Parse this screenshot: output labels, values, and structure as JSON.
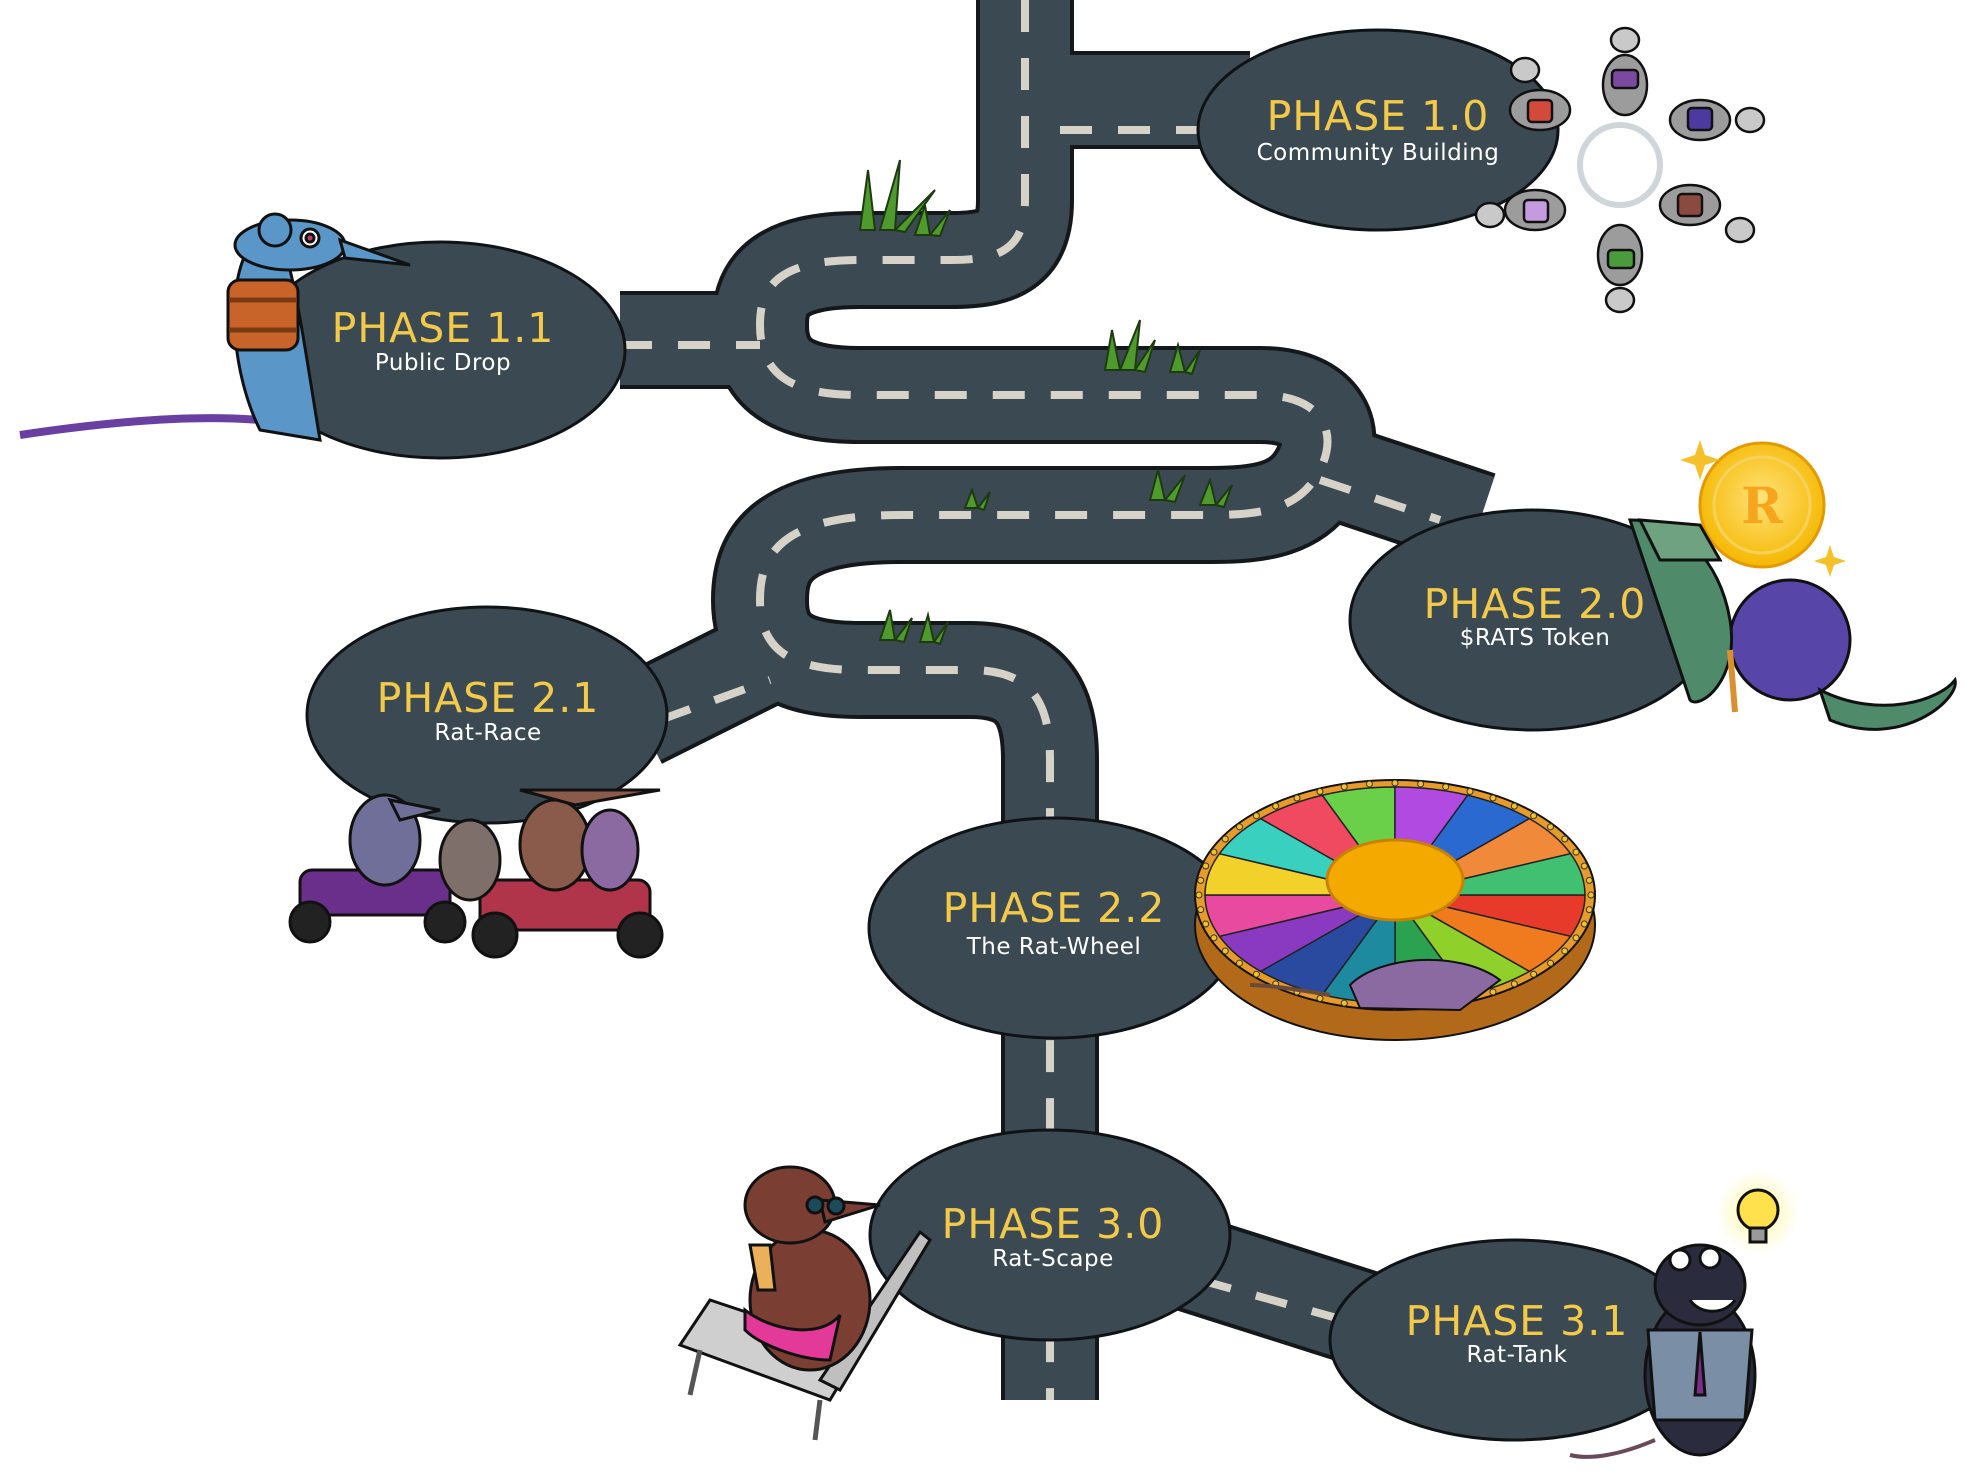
{
  "roadmap": {
    "phases": [
      {
        "id": "1.0",
        "title": "PHASE 1.0",
        "subtitle": "Community Building"
      },
      {
        "id": "1.1",
        "title": "PHASE 1.1",
        "subtitle": "Public Drop"
      },
      {
        "id": "2.0",
        "title": "PHASE 2.0",
        "subtitle": "$RATS Token"
      },
      {
        "id": "2.1",
        "title": "PHASE 2.1",
        "subtitle": "Rat-Race"
      },
      {
        "id": "2.2",
        "title": "PHASE 2.2",
        "subtitle": "The Rat-Wheel"
      },
      {
        "id": "3.0",
        "title": "PHASE 3.0",
        "subtitle": "Rat-Scape"
      },
      {
        "id": "3.1",
        "title": "PHASE 3.1",
        "subtitle": "Rat-Tank"
      }
    ]
  },
  "coin": {
    "letter": "R"
  },
  "colors": {
    "road": "#3b4a52",
    "road_edge": "#14181a",
    "bubble": "#3b4a52",
    "title": "#f3c94a",
    "subtitle": "#ffffff",
    "dash": "#d7d2c8",
    "grass": "#4f9a2c"
  },
  "icons": [
    "rat-circle-illustration",
    "rat-life-vest-illustration",
    "rat-coin-illustration",
    "rat-go-karts-illustration",
    "rat-wheel-illustration",
    "rat-sunbed-illustration",
    "rat-tank-lightbulb-illustration"
  ]
}
